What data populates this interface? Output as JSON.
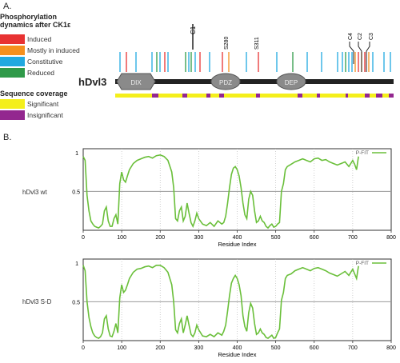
{
  "panel_a": {
    "label": "A.",
    "legend_title_line1": "Phosphorylation",
    "legend_title_line2": "dynamics after CK1ε",
    "legend_items": [
      {
        "label": "Induced",
        "color": "#e83232"
      },
      {
        "label": "Mostly in induced",
        "color": "#f5901e"
      },
      {
        "label": "Constitutive",
        "color": "#21a9e0"
      },
      {
        "label": "Reduced",
        "color": "#2f9a49"
      }
    ],
    "protein_name": "hDvl3",
    "domains": [
      "DIX",
      "PDZ",
      "DEP"
    ],
    "site_labels": [
      "C1",
      "S280",
      "S311",
      "C4",
      "C2",
      "C3"
    ],
    "coverage_title": "Sequence coverage",
    "coverage_items": [
      {
        "label": "Significant",
        "color": "#f4ef1b"
      },
      {
        "label": "Insignificant",
        "color": "#93278f"
      }
    ]
  },
  "panel_b": {
    "label": "B.",
    "legend_label": "P-FIT",
    "line_color": "#6abf3a",
    "x_axis_label": "Residue Index",
    "x_ticks": [
      "0",
      "100",
      "200",
      "300",
      "400",
      "500",
      "600",
      "700",
      "800"
    ],
    "y_ticks": [
      "1",
      "0.5"
    ],
    "plots": [
      {
        "row_label": "hDvl3 wt"
      },
      {
        "row_label": "hDvl3 S-D"
      }
    ]
  },
  "chart_data": [
    {
      "type": "line",
      "series": [
        {
          "name": "P-FIT",
          "x": [
            0,
            5,
            10,
            15,
            20,
            25,
            30,
            35,
            40,
            45,
            50,
            55,
            60,
            65,
            70,
            75,
            80,
            85,
            90,
            95,
            100,
            105,
            110,
            115,
            120,
            130,
            140,
            150,
            160,
            170,
            180,
            190,
            200,
            210,
            220,
            230,
            235,
            240,
            245,
            250,
            255,
            260,
            265,
            270,
            275,
            280,
            285,
            290,
            295,
            300,
            310,
            320,
            330,
            340,
            350,
            360,
            365,
            370,
            375,
            380,
            385,
            390,
            395,
            400,
            405,
            410,
            415,
            420,
            425,
            430,
            435,
            440,
            445,
            450,
            455,
            460,
            465,
            470,
            475,
            480,
            485,
            490,
            495,
            500,
            505,
            510,
            515,
            520,
            525,
            530,
            540,
            550,
            560,
            570,
            580,
            590,
            600,
            610,
            620,
            630,
            640,
            650,
            660,
            670,
            680,
            690,
            700,
            705,
            710,
            715
          ],
          "y": [
            0.95,
            0.9,
            0.45,
            0.25,
            0.12,
            0.08,
            0.05,
            0.04,
            0.03,
            0.05,
            0.08,
            0.25,
            0.3,
            0.12,
            0.05,
            0.05,
            0.15,
            0.2,
            0.08,
            0.6,
            0.75,
            0.65,
            0.62,
            0.7,
            0.78,
            0.86,
            0.9,
            0.92,
            0.94,
            0.95,
            0.93,
            0.96,
            0.97,
            0.95,
            0.9,
            0.75,
            0.55,
            0.15,
            0.12,
            0.25,
            0.3,
            0.12,
            0.18,
            0.35,
            0.22,
            0.1,
            0.05,
            0.12,
            0.22,
            0.15,
            0.08,
            0.06,
            0.1,
            0.05,
            0.12,
            0.08,
            0.1,
            0.18,
            0.35,
            0.55,
            0.72,
            0.8,
            0.82,
            0.78,
            0.7,
            0.55,
            0.35,
            0.2,
            0.15,
            0.4,
            0.5,
            0.45,
            0.25,
            0.1,
            0.12,
            0.18,
            0.12,
            0.1,
            0.05,
            0.03,
            0.06,
            0.08,
            0.04,
            0.05,
            0.08,
            0.1,
            0.5,
            0.6,
            0.78,
            0.82,
            0.85,
            0.88,
            0.9,
            0.92,
            0.9,
            0.88,
            0.92,
            0.93,
            0.9,
            0.91,
            0.88,
            0.86,
            0.84,
            0.86,
            0.88,
            0.82,
            0.9,
            0.85,
            0.78,
            0.95
          ]
        }
      ],
      "xlabel": "Residue Index",
      "xlim": [
        0,
        800
      ],
      "ylim": [
        0,
        1.05
      ],
      "reference_line": 0.5
    },
    {
      "type": "line",
      "series": [
        {
          "name": "P-FIT",
          "x": [
            0,
            5,
            10,
            15,
            20,
            25,
            30,
            35,
            40,
            45,
            50,
            55,
            60,
            65,
            70,
            75,
            80,
            85,
            90,
            95,
            100,
            105,
            110,
            115,
            120,
            130,
            140,
            150,
            160,
            170,
            180,
            190,
            200,
            210,
            220,
            230,
            235,
            240,
            245,
            250,
            255,
            260,
            265,
            270,
            275,
            280,
            285,
            290,
            295,
            300,
            310,
            320,
            330,
            340,
            350,
            360,
            365,
            370,
            375,
            380,
            385,
            390,
            395,
            400,
            405,
            410,
            415,
            420,
            425,
            430,
            435,
            440,
            445,
            450,
            455,
            460,
            465,
            470,
            475,
            480,
            485,
            490,
            495,
            500,
            505,
            510,
            515,
            520,
            525,
            530,
            540,
            550,
            560,
            570,
            580,
            590,
            600,
            610,
            620,
            630,
            640,
            650,
            660,
            670,
            680,
            690,
            700,
            705,
            710,
            715
          ],
          "y": [
            0.97,
            0.9,
            0.5,
            0.3,
            0.18,
            0.1,
            0.06,
            0.04,
            0.03,
            0.05,
            0.1,
            0.28,
            0.32,
            0.15,
            0.06,
            0.05,
            0.12,
            0.22,
            0.1,
            0.55,
            0.72,
            0.62,
            0.65,
            0.72,
            0.8,
            0.88,
            0.92,
            0.93,
            0.95,
            0.96,
            0.94,
            0.97,
            0.97,
            0.94,
            0.88,
            0.72,
            0.5,
            0.14,
            0.1,
            0.22,
            0.28,
            0.1,
            0.2,
            0.32,
            0.2,
            0.08,
            0.05,
            0.1,
            0.2,
            0.14,
            0.06,
            0.05,
            0.08,
            0.05,
            0.1,
            0.07,
            0.12,
            0.2,
            0.38,
            0.58,
            0.74,
            0.8,
            0.84,
            0.8,
            0.72,
            0.58,
            0.32,
            0.18,
            0.12,
            0.36,
            0.48,
            0.42,
            0.22,
            0.08,
            0.1,
            0.15,
            0.1,
            0.08,
            0.04,
            0.03,
            0.05,
            0.07,
            0.03,
            0.04,
            0.1,
            0.15,
            0.52,
            0.62,
            0.8,
            0.84,
            0.86,
            0.9,
            0.92,
            0.94,
            0.92,
            0.9,
            0.93,
            0.94,
            0.92,
            0.9,
            0.87,
            0.85,
            0.83,
            0.86,
            0.89,
            0.84,
            0.92,
            0.86,
            0.8,
            0.96
          ]
        }
      ],
      "xlabel": "Residue Index",
      "xlim": [
        0,
        800
      ],
      "ylim": [
        0,
        1.05
      ],
      "reference_line": 0.5
    }
  ]
}
